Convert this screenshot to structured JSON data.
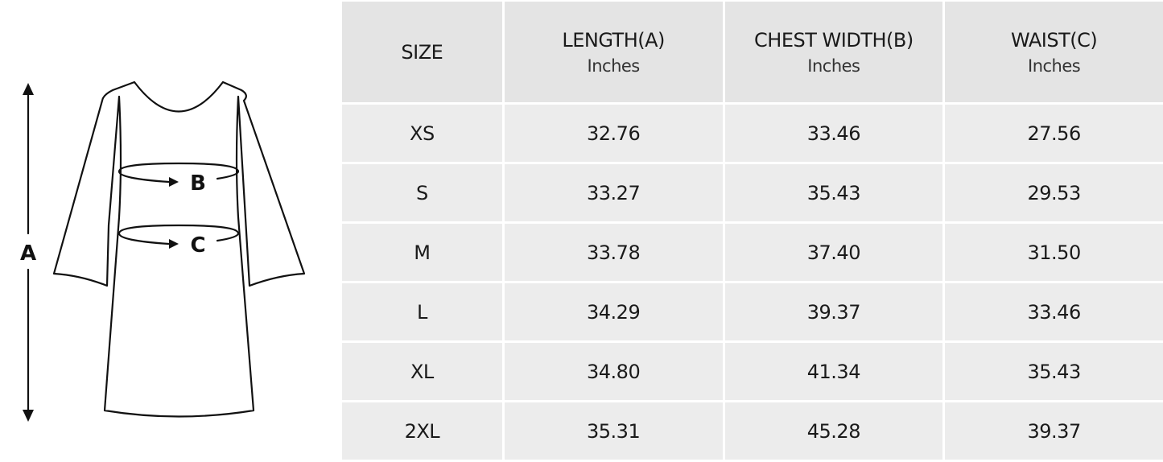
{
  "diagram": {
    "label_a": "A",
    "label_b": "B",
    "label_c": "C"
  },
  "table": {
    "headers": [
      {
        "title": "SIZE",
        "unit": ""
      },
      {
        "title": "LENGTH(A)",
        "unit": "Inches"
      },
      {
        "title": "CHEST WIDTH(B)",
        "unit": "Inches"
      },
      {
        "title": "WAIST(C)",
        "unit": "Inches"
      }
    ],
    "rows": [
      [
        "XS",
        "32.76",
        "33.46",
        "27.56"
      ],
      [
        "S",
        "33.27",
        "35.43",
        "29.53"
      ],
      [
        "M",
        "33.78",
        "37.40",
        "31.50"
      ],
      [
        "L",
        "34.29",
        "39.37",
        "33.46"
      ],
      [
        "XL",
        "34.80",
        "41.34",
        "35.43"
      ],
      [
        "2XL",
        "35.31",
        "45.28",
        "39.37"
      ]
    ]
  },
  "colors": {
    "header_bg": "#e4e4e4",
    "cell_bg": "#ececec"
  }
}
